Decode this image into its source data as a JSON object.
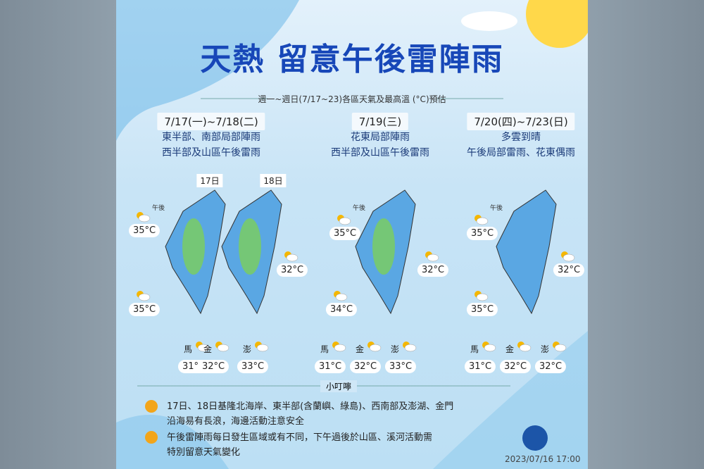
{
  "header": {
    "title": "天熱  留意午後雷陣雨",
    "subtitle": "週一~週日(7/17~23)各區天氣及最高溫 (°C)預估"
  },
  "panels": [
    {
      "date": "7/17(一)~7/18(二)",
      "lines": [
        "東半部、南部局部陣雨",
        "西半部及山區午後雷雨"
      ],
      "map_days": [
        "17日",
        "18日"
      ],
      "afternoon": "午後",
      "temps": [
        "35°C",
        "32°C",
        "35°C"
      ],
      "islands": [
        {
          "name": "馬",
          "temp": "31°C"
        },
        {
          "name": "金",
          "temp": "32°C"
        },
        {
          "name": "澎",
          "temp": "33°C"
        }
      ]
    },
    {
      "date": "7/19(三)",
      "lines": [
        "花東局部陣雨",
        "西半部及山區午後雷雨"
      ],
      "afternoon": "午後",
      "temps": [
        "35°C",
        "32°C",
        "34°C"
      ],
      "islands": [
        {
          "name": "馬",
          "temp": "31°C"
        },
        {
          "name": "金",
          "temp": "32°C"
        },
        {
          "name": "澎",
          "temp": "33°C"
        }
      ]
    },
    {
      "date": "7/20(四)~7/23(日)",
      "lines": [
        "多雲到晴",
        "午後局部雷雨、花東偶雨"
      ],
      "afternoon": "午後",
      "temps": [
        "35°C",
        "32°C",
        "35°C"
      ],
      "islands": [
        {
          "name": "馬",
          "temp": "31°C"
        },
        {
          "name": "金",
          "temp": "32°C"
        },
        {
          "name": "澎",
          "temp": "32°C"
        }
      ]
    }
  ],
  "notes": {
    "heading": "小叮嚀",
    "items": [
      [
        "17日、18日基隆北海岸、東半部(含蘭嶼、綠島)、西南部及澎湖、金門",
        "沿海易有長浪，海邊活動注意安全"
      ],
      [
        "午後雷陣雨每日發生區域或有不同，下午過後於山區、溪河活動需",
        "特別留意天氣變化"
      ]
    ]
  },
  "footer": {
    "timestamp": "2023/07/16 17:00"
  }
}
